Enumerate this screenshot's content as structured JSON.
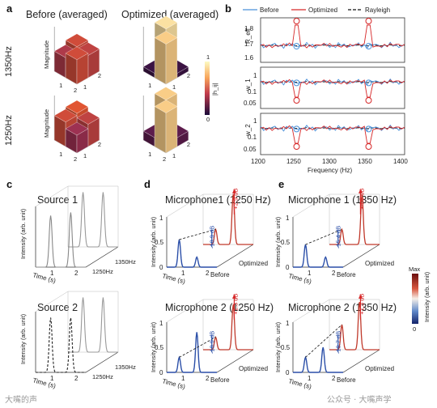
{
  "panels": {
    "a": {
      "label": "a",
      "col_titles": [
        "Before (averaged)",
        "Optimized (averaged)"
      ],
      "row_labels": [
        "1350Hz",
        "1250Hz"
      ],
      "zlabel": "Magnitude",
      "axis_ticks": [
        "1",
        "2"
      ],
      "colorbar": {
        "max": "1",
        "min": "0",
        "label": "|h_ij|"
      },
      "matrices": [
        {
          "row": "1350Hz",
          "col": "Before (averaged)",
          "values": [
            [
              0.55,
              0.5
            ],
            [
              0.45,
              0.55
            ]
          ]
        },
        {
          "row": "1350Hz",
          "col": "Optimized (averaged)",
          "values": [
            [
              0.95,
              0.1
            ],
            [
              0.1,
              0.9
            ]
          ]
        },
        {
          "row": "1250Hz",
          "col": "Before (averaged)",
          "values": [
            [
              0.6,
              0.5
            ],
            [
              0.55,
              0.4
            ]
          ]
        },
        {
          "row": "1250Hz",
          "col": "Optimized (averaged)",
          "values": [
            [
              0.9,
              0.2
            ],
            [
              0.2,
              0.9
            ]
          ]
        }
      ]
    },
    "b": {
      "label": "b",
      "legend": [
        "Before",
        "Optimized",
        "Rayleigh"
      ],
      "xlabel": "Frequency (Hz)",
      "xticks": [
        "1200",
        "1250",
        "1300",
        "1350",
        "1400"
      ],
      "subplots": [
        {
          "ylabel": "R_eff",
          "yticks": [
            "1.8",
            "1.7",
            "1.6"
          ]
        },
        {
          "ylabel": "w_1",
          "yticks": [
            "1",
            "0.1",
            "0.05"
          ]
        },
        {
          "ylabel": "w_2",
          "yticks": [
            "1",
            "0.1",
            "0.05"
          ]
        }
      ]
    },
    "c": {
      "label": "c",
      "sub_titles": [
        "Source 1",
        "Source 2"
      ],
      "ylabel": "Intensity (arb. unit)",
      "xlabel": "Time (s)",
      "xticks": [
        "1",
        "2"
      ],
      "freq_labels": [
        "1350Hz",
        "1250Hz"
      ]
    },
    "d": {
      "label": "d",
      "sub_titles": [
        "Microphone1 (1250 Hz)",
        "Microphone 2 (1250 Hz)"
      ],
      "ylabel": "Intensity (arb. unit)",
      "xlabel": "Time (s)",
      "yticks": [
        "1",
        "0.5",
        "0"
      ],
      "xticks": [
        "1",
        "2"
      ],
      "depth_labels": [
        "Before",
        "Optimized"
      ],
      "annotations": [
        {
          "plot": "top",
          "red": "+2.9 dB",
          "blue": "-18.9 dB"
        },
        {
          "plot": "bottom",
          "red": "+1.3 dB",
          "blue": "-18.9 dB"
        }
      ]
    },
    "e": {
      "label": "e",
      "sub_titles": [
        "Microphone 1 (1350 Hz)",
        "Microphone 2 (1350 Hz)"
      ],
      "ylabel": "Intensity (arb. unit)",
      "xlabel": "Time (s)",
      "yticks": [
        "1",
        "0.5",
        "0"
      ],
      "xticks": [
        "1",
        "2"
      ],
      "depth_labels": [
        "Before",
        "Optimized"
      ],
      "colorbar": {
        "max": "Max",
        "min": "0",
        "label": "Intensity (arb. unit)"
      },
      "annotations": [
        {
          "plot": "top",
          "red": "+4.0 dB",
          "blue": "-15.4 dB"
        },
        {
          "plot": "bottom",
          "red": "+1.3 dB",
          "blue": "-19.7 dB"
        }
      ]
    }
  },
  "watermark": {
    "left": "大嘴的声",
    "right": "公众号 · 大嘴声学"
  },
  "colors": {
    "before": "#4a90d9",
    "optimized": "#d62728",
    "rayleigh": "#111111",
    "cb_high": "#fdfbc3",
    "cb_mid": "#e4572e",
    "cb_low": "#1b0b3a"
  }
}
